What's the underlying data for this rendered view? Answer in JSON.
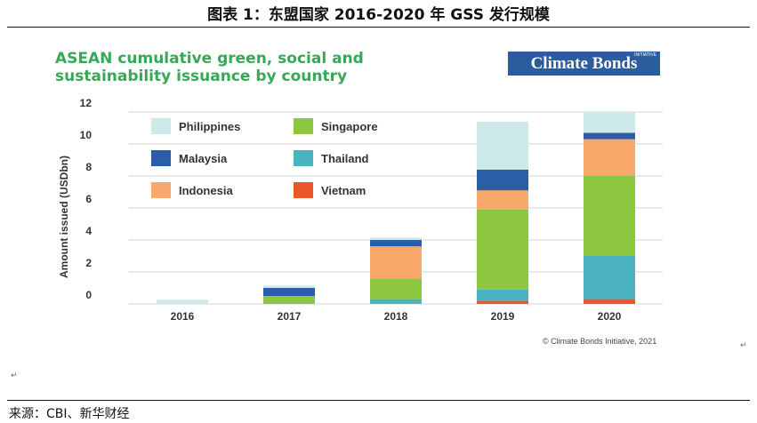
{
  "document": {
    "caption": "图表 1：东盟国家 2016-2020 年 GSS 发行规模",
    "source": "来源：CBI、新华财经",
    "para_mark": "↵"
  },
  "logo": {
    "text": "Climate Bonds",
    "small_text": "INITIATIVE"
  },
  "copyright": "© Climate Bonds Initiative, 2021",
  "colors": {
    "Philippines": "#cde9ea",
    "Malaysia": "#2b5ea8",
    "Indonesia": "#f7a86a",
    "Singapore": "#8dc63f",
    "Thailand": "#4bb3c0",
    "Vietnam": "#e8562a"
  },
  "chart_data": {
    "type": "bar",
    "stacked": true,
    "title": "ASEAN cumulative green, social and sustainability issuance by country",
    "xlabel": "",
    "ylabel": "Amount issued (USDbn)",
    "ylim": [
      0,
      12
    ],
    "yticks": [
      "0",
      "2",
      "4",
      "6",
      "8",
      "10",
      "12"
    ],
    "grid": true,
    "legend_position": "top-left",
    "categories": [
      "2016",
      "2017",
      "2018",
      "2019",
      "2020"
    ],
    "series": [
      {
        "name": "Vietnam",
        "values": [
          0,
          0,
          0,
          0.2,
          0.3
        ]
      },
      {
        "name": "Thailand",
        "values": [
          0,
          0,
          0.3,
          0.7,
          2.7
        ]
      },
      {
        "name": "Singapore",
        "values": [
          0,
          0.5,
          1.3,
          5.0,
          5.0
        ]
      },
      {
        "name": "Indonesia",
        "values": [
          0,
          0,
          2.0,
          1.2,
          2.3
        ]
      },
      {
        "name": "Malaysia",
        "values": [
          0,
          0.5,
          0.4,
          1.3,
          0.4
        ]
      },
      {
        "name": "Philippines",
        "values": [
          0.25,
          0.15,
          0.15,
          3.0,
          1.3
        ]
      }
    ],
    "legend_order": [
      "Philippines",
      "Singapore",
      "Malaysia",
      "Thailand",
      "Indonesia",
      "Vietnam"
    ]
  }
}
